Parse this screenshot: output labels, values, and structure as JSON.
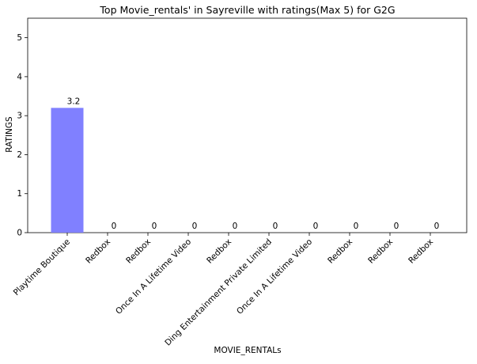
{
  "chart_data": {
    "type": "bar",
    "title": "Top Movie_rentals' in Sayreville with ratings(Max 5) for G2G",
    "xlabel": "MOVIE_RENTALs",
    "ylabel": "RATINGS",
    "categories": [
      "Playtime Boutique",
      "Redbox",
      "Redbox",
      "Once In A Lifetime Video",
      "Redbox",
      "Ding Entertainment Private Limited",
      "Once In A Lifetime Video",
      "Redbox",
      "Redbox",
      "Redbox"
    ],
    "values": [
      3.2,
      0,
      0,
      0,
      0,
      0,
      0,
      0,
      0,
      0
    ],
    "data_labels": [
      "3.2",
      "0",
      "0",
      "0",
      "0",
      "0",
      "0",
      "0",
      "0",
      "0"
    ],
    "ylim": [
      0,
      5.5
    ],
    "yticks": [
      0,
      1,
      2,
      3,
      4,
      5
    ],
    "grid": false,
    "bar_color": "#8080ff"
  }
}
